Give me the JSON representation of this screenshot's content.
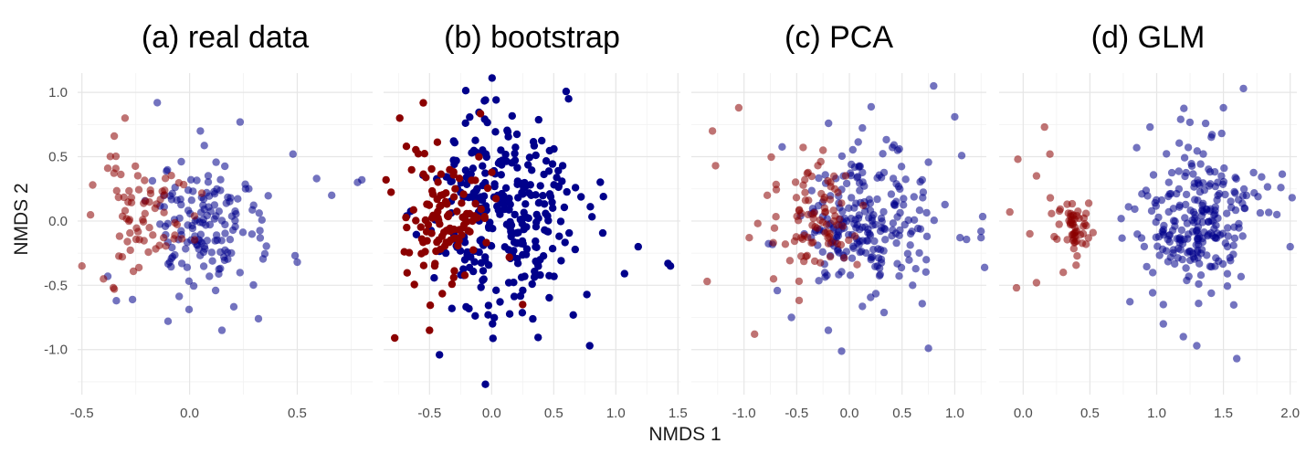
{
  "chart_data": {
    "type": "scatter",
    "xlabel": "NMDS 1",
    "ylabel": "NMDS 2",
    "shared_y": true,
    "ylim": [
      -1.35,
      1.15
    ],
    "y_ticks": [
      1.0,
      0.5,
      0.0,
      -0.5,
      -1.0
    ],
    "y_tick_labels": [
      "1.0",
      "0.5",
      "0.0",
      "-0.5",
      "-1.0"
    ],
    "grid": true,
    "legend": "none",
    "group_colors": {
      "red": "#8b0000",
      "blue": "#00008b"
    },
    "panels": [
      {
        "title": "(a) real data",
        "opacity": 0.55,
        "xlim": [
          -0.52,
          0.85
        ],
        "x_ticks": [
          -0.5,
          0.0,
          0.5
        ],
        "x_tick_labels": [
          "-0.5",
          "0.0",
          "0.5"
        ],
        "red": {
          "center": [
            -0.2,
            0.05
          ],
          "spread": [
            0.11,
            0.2
          ],
          "n": 70,
          "seed": 11,
          "extra": [
            [
              -0.5,
              -0.35
            ],
            [
              -0.45,
              0.28
            ],
            [
              -0.38,
              0.41
            ],
            [
              -0.3,
              0.8
            ],
            [
              -0.35,
              0.66
            ],
            [
              -0.35,
              -0.53
            ],
            [
              -0.4,
              -0.45
            ]
          ]
        },
        "blue": {
          "center": [
            0.07,
            -0.05
          ],
          "spread": [
            0.13,
            0.25
          ],
          "n": 150,
          "seed": 23,
          "extra": [
            [
              0.8,
              0.32
            ],
            [
              0.78,
              0.3
            ],
            [
              0.66,
              0.2
            ],
            [
              0.59,
              0.33
            ],
            [
              0.48,
              0.52
            ],
            [
              0.49,
              -0.27
            ],
            [
              0.5,
              -0.32
            ],
            [
              -0.15,
              0.92
            ],
            [
              -0.38,
              -0.43
            ],
            [
              -0.34,
              -0.62
            ],
            [
              0.32,
              -0.76
            ],
            [
              0.15,
              -0.85
            ],
            [
              -0.1,
              -0.78
            ],
            [
              0.05,
              0.7
            ]
          ]
        }
      },
      {
        "title": "(b) bootstrap",
        "opacity": 1.0,
        "xlim": [
          -0.87,
          1.52
        ],
        "x_ticks": [
          -0.5,
          0.0,
          0.5,
          1.0,
          1.5
        ],
        "x_tick_labels": [
          "-0.5",
          "0.0",
          "0.5",
          "1.0",
          "1.5"
        ],
        "red": {
          "center": [
            -0.35,
            0.05
          ],
          "spread": [
            0.17,
            0.28
          ],
          "n": 120,
          "seed": 37,
          "extra": [
            [
              -0.74,
              0.8
            ],
            [
              -0.78,
              -0.91
            ],
            [
              -0.85,
              0.32
            ],
            [
              -0.5,
              -0.85
            ],
            [
              0.25,
              -0.65
            ]
          ]
        },
        "blue": {
          "center": [
            0.08,
            0.0
          ],
          "spread": [
            0.28,
            0.38
          ],
          "n": 300,
          "seed": 51,
          "extra": [
            [
              1.42,
              -0.33
            ],
            [
              1.44,
              -0.35
            ],
            [
              1.18,
              -0.2
            ],
            [
              1.07,
              -0.41
            ],
            [
              0.79,
              -0.97
            ],
            [
              0.62,
              0.95
            ],
            [
              -0.05,
              0.94
            ],
            [
              0.9,
              0.19
            ],
            [
              -0.05,
              -1.27
            ],
            [
              -0.42,
              -1.04
            ]
          ]
        }
      },
      {
        "title": "(c) PCA",
        "opacity": 0.55,
        "xlim": [
          -1.5,
          1.3
        ],
        "x_ticks": [
          -1.0,
          -0.5,
          0.0,
          0.5,
          1.0
        ],
        "x_tick_labels": [
          "-1.0",
          "-0.5",
          "0.0",
          "0.5",
          "1.0"
        ],
        "red": {
          "center": [
            -0.3,
            0.02
          ],
          "spread": [
            0.18,
            0.22
          ],
          "n": 90,
          "seed": 63,
          "extra": [
            [
              -1.3,
              0.7
            ],
            [
              -1.05,
              0.88
            ],
            [
              -1.27,
              0.43
            ],
            [
              -1.35,
              -0.47
            ],
            [
              -0.9,
              -0.88
            ],
            [
              -0.78,
              0.2
            ],
            [
              -0.72,
              -0.45
            ],
            [
              -0.95,
              -0.13
            ]
          ]
        },
        "blue": {
          "center": [
            0.15,
            0.0
          ],
          "spread": [
            0.32,
            0.3
          ],
          "n": 230,
          "seed": 77,
          "extra": [
            [
              0.8,
              1.05
            ],
            [
              1.0,
              0.81
            ],
            [
              1.25,
              -0.08
            ],
            [
              1.25,
              -0.13
            ],
            [
              0.75,
              -0.99
            ],
            [
              0.6,
              -0.5
            ],
            [
              -0.55,
              -0.75
            ],
            [
              -0.2,
              -0.85
            ],
            [
              1.05,
              -0.13
            ]
          ]
        }
      },
      {
        "title": "(d) GLM",
        "opacity": 0.55,
        "xlim": [
          -0.18,
          2.05
        ],
        "x_ticks": [
          0.0,
          0.5,
          1.0,
          1.5,
          2.0
        ],
        "x_tick_labels": [
          "0.0",
          "0.5",
          "1.0",
          "1.5",
          "2.0"
        ],
        "red": {
          "center": [
            0.36,
            -0.03
          ],
          "spread": [
            0.07,
            0.1
          ],
          "n": 55,
          "seed": 89,
          "extra": [
            [
              -0.04,
              0.48
            ],
            [
              0.16,
              0.73
            ],
            [
              0.2,
              0.52
            ],
            [
              -0.1,
              0.07
            ],
            [
              -0.05,
              -0.52
            ],
            [
              0.1,
              -0.48
            ],
            [
              0.3,
              -0.4
            ],
            [
              0.1,
              0.35
            ],
            [
              0.05,
              -0.1
            ]
          ]
        },
        "blue": {
          "center": [
            1.3,
            0.0
          ],
          "spread": [
            0.22,
            0.28
          ],
          "n": 240,
          "seed": 97,
          "extra": [
            [
              1.65,
              1.03
            ],
            [
              1.5,
              0.88
            ],
            [
              1.93,
              0.26
            ],
            [
              1.9,
              0.05
            ],
            [
              2.0,
              -0.2
            ],
            [
              1.6,
              -1.07
            ],
            [
              1.3,
              -0.97
            ],
            [
              1.2,
              -0.9
            ],
            [
              1.05,
              -0.65
            ],
            [
              1.05,
              -0.8
            ],
            [
              0.85,
              0.57
            ],
            [
              0.95,
              0.73
            ],
            [
              1.18,
              0.79
            ]
          ]
        }
      }
    ]
  }
}
